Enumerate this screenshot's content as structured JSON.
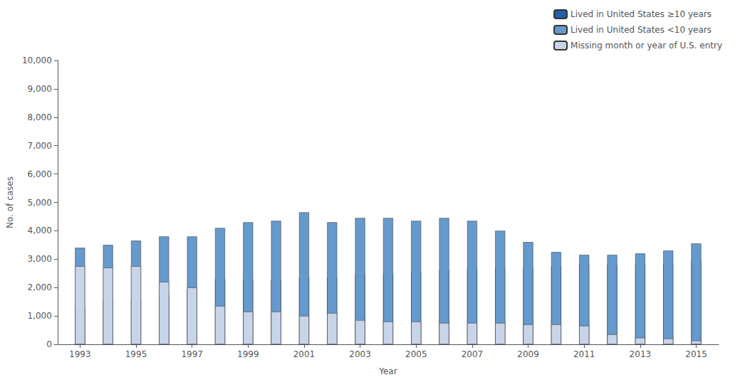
{
  "chart_data": {
    "type": "bar",
    "stacked": true,
    "x": [
      1993,
      1994,
      1995,
      1996,
      1997,
      1998,
      1999,
      2000,
      2001,
      2002,
      2003,
      2004,
      2005,
      2006,
      2007,
      2008,
      2009,
      2010,
      2011,
      2012,
      2013,
      2014,
      2015
    ],
    "series": [
      {
        "name": "Lived in United States ≥10 years",
        "color": "#2060a8",
        "values": [
          1300,
          1550,
          1600,
          1750,
          1950,
          2300,
          2300,
          2250,
          2350,
          2350,
          2500,
          2500,
          2550,
          2600,
          2650,
          2700,
          2700,
          2750,
          2800,
          2800,
          2800,
          2850,
          2950
        ]
      },
      {
        "name": "Lived in United States <10 years",
        "color": "#6699cc",
        "values": [
          3400,
          3500,
          3650,
          3800,
          3800,
          4100,
          4300,
          4350,
          4650,
          4300,
          4450,
          4450,
          4350,
          4450,
          4350,
          4000,
          3600,
          3250,
          3150,
          3150,
          3200,
          3300,
          3550
        ]
      },
      {
        "name": "Missing month or year of U.S. entry",
        "color": "#c8d4e8",
        "values": [
          2750,
          2700,
          2750,
          2200,
          2000,
          1350,
          1150,
          1150,
          1000,
          1100,
          850,
          800,
          800,
          750,
          750,
          750,
          700,
          700,
          650,
          350,
          230,
          200,
          130
        ]
      }
    ],
    "xlabel": "Year",
    "ylabel": "No. of cases",
    "xlim": [
      1992.2,
      2015.8
    ],
    "xticks": [
      1993,
      1995,
      1997,
      1999,
      2001,
      2003,
      2005,
      2007,
      2009,
      2011,
      2013,
      2015
    ],
    "ylim": [
      0,
      10000
    ],
    "yticks": [
      0,
      {
        "value": 1000,
        "label": "1,000"
      },
      {
        "value": 2000,
        "label": "2,000"
      },
      {
        "value": 3000,
        "label": "3,000"
      },
      {
        "value": 4000,
        "label": "4,000"
      },
      {
        "value": 5000,
        "label": "5,000"
      },
      {
        "value": 6000,
        "label": "6,000"
      },
      {
        "value": 7000,
        "label": "7,000"
      },
      {
        "value": 8000,
        "label": "8,000"
      },
      {
        "value": 9000,
        "label": "9,000"
      },
      {
        "value": 10000,
        "label": "10,000"
      }
    ],
    "grid": false,
    "legend": "upper right"
  }
}
